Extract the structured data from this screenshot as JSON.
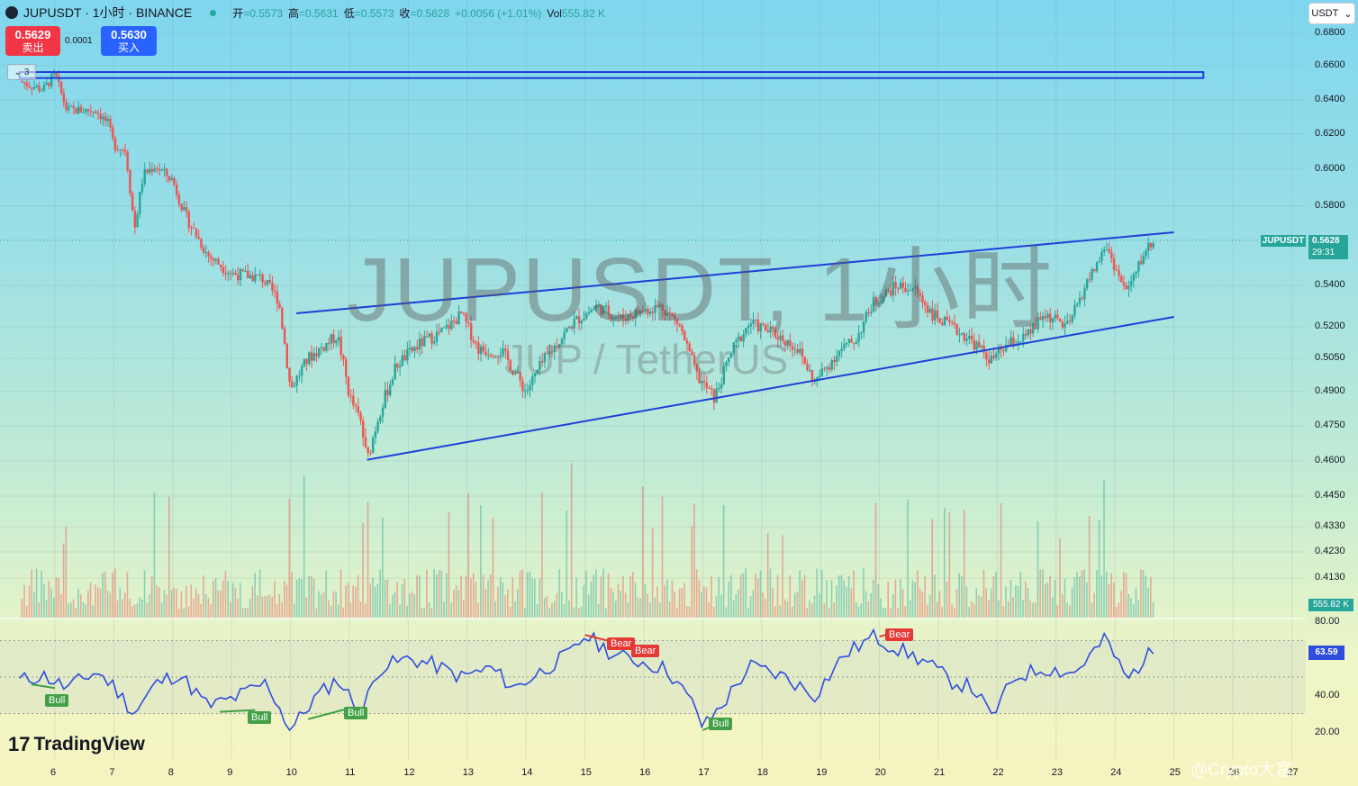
{
  "header": {
    "symbol_title": "JUPUSDT · 1小时 · BINANCE",
    "ohlc": [
      {
        "k": "开",
        "v": "=0.5573"
      },
      {
        "k": "高",
        "v": "=0.5631"
      },
      {
        "k": "低",
        "v": "=0.5573"
      },
      {
        "k": "收",
        "v": "=0.5628"
      },
      {
        "k": "",
        "v": "+0.0056 (+1.01%)"
      },
      {
        "k": "Vol",
        "v": "555.82 K"
      }
    ]
  },
  "trade": {
    "sell_price": "0.5629",
    "sell_label": "卖出",
    "spread": "0.0001",
    "buy_price": "0.5630",
    "buy_label": "买入"
  },
  "collapse_label": "3",
  "currency_select": "USDT",
  "price_axis": {
    "ticks": [
      "0.6800",
      "0.6600",
      "0.6400",
      "0.6200",
      "0.6000",
      "0.5800",
      "0.5400",
      "0.5200",
      "0.5050",
      "0.4900",
      "0.4750",
      "0.4600",
      "0.4450",
      "0.4330",
      "0.4230",
      "0.4130"
    ]
  },
  "last_price": {
    "symbol": "JUPUSDT",
    "price": "0.5628",
    "countdown": "29:31"
  },
  "volume_label": "555.82 K",
  "rsi": {
    "ticks": [
      "80.00",
      "40.00",
      "20.00"
    ],
    "current": "63.59",
    "signals": [
      "Bull",
      "Bull",
      "Bull",
      "Bull",
      "Bear",
      "Bear",
      "Bear"
    ]
  },
  "time_axis": {
    "ticks": [
      "6",
      "7",
      "8",
      "9",
      "10",
      "11",
      "12",
      "13",
      "14",
      "15",
      "16",
      "17",
      "18",
      "19",
      "20",
      "21",
      "22",
      "23",
      "24",
      "25",
      "26",
      "27"
    ]
  },
  "watermark": {
    "main": "JUPUSDT, 1小时",
    "sub": "JUP / TetherUS"
  },
  "branding": "TradingView",
  "corner_text": "@Crypto大富",
  "colors": {
    "up": "#26a69a",
    "down": "#ef5350",
    "line": "#1e3fd8",
    "rsi": "#2f4ee0",
    "bull": "#43a047",
    "bear": "#e53935"
  },
  "chart_data": {
    "type": "candlestick",
    "symbol": "JUPUSDT",
    "interval": "1小时",
    "exchange": "BINANCE",
    "x_labels": [
      "6",
      "7",
      "8",
      "9",
      "10",
      "11",
      "12",
      "13",
      "14",
      "15",
      "16",
      "17",
      "18",
      "19",
      "20",
      "21",
      "22",
      "23",
      "24",
      "25",
      "26",
      "27"
    ],
    "ylim": [
      0.405,
      0.685
    ],
    "close_path": [
      {
        "day": 5.4,
        "price": 0.651
      },
      {
        "day": 5.8,
        "price": 0.646
      },
      {
        "day": 6.0,
        "price": 0.655
      },
      {
        "day": 6.2,
        "price": 0.634
      },
      {
        "day": 6.7,
        "price": 0.634
      },
      {
        "day": 6.9,
        "price": 0.626
      },
      {
        "day": 7.0,
        "price": 0.614
      },
      {
        "day": 7.2,
        "price": 0.611
      },
      {
        "day": 7.35,
        "price": 0.568
      },
      {
        "day": 7.5,
        "price": 0.597
      },
      {
        "day": 7.7,
        "price": 0.602
      },
      {
        "day": 8.0,
        "price": 0.594
      },
      {
        "day": 8.2,
        "price": 0.576
      },
      {
        "day": 8.6,
        "price": 0.555
      },
      {
        "day": 9.0,
        "price": 0.546
      },
      {
        "day": 9.5,
        "price": 0.544
      },
      {
        "day": 9.8,
        "price": 0.533
      },
      {
        "day": 10.0,
        "price": 0.491
      },
      {
        "day": 10.3,
        "price": 0.505
      },
      {
        "day": 10.8,
        "price": 0.516
      },
      {
        "day": 11.0,
        "price": 0.488
      },
      {
        "day": 11.2,
        "price": 0.476
      },
      {
        "day": 11.3,
        "price": 0.46
      },
      {
        "day": 11.5,
        "price": 0.48
      },
      {
        "day": 11.8,
        "price": 0.502
      },
      {
        "day": 12.2,
        "price": 0.512
      },
      {
        "day": 12.6,
        "price": 0.518
      },
      {
        "day": 12.9,
        "price": 0.526
      },
      {
        "day": 13.2,
        "price": 0.509
      },
      {
        "day": 13.6,
        "price": 0.508
      },
      {
        "day": 14.0,
        "price": 0.49
      },
      {
        "day": 14.3,
        "price": 0.504
      },
      {
        "day": 14.8,
        "price": 0.522
      },
      {
        "day": 15.2,
        "price": 0.53
      },
      {
        "day": 15.6,
        "price": 0.524
      },
      {
        "day": 16.0,
        "price": 0.528
      },
      {
        "day": 16.3,
        "price": 0.53
      },
      {
        "day": 16.6,
        "price": 0.521
      },
      {
        "day": 16.9,
        "price": 0.497
      },
      {
        "day": 17.2,
        "price": 0.487
      },
      {
        "day": 17.5,
        "price": 0.509
      },
      {
        "day": 17.8,
        "price": 0.522
      },
      {
        "day": 18.2,
        "price": 0.517
      },
      {
        "day": 18.6,
        "price": 0.51
      },
      {
        "day": 18.9,
        "price": 0.494
      },
      {
        "day": 19.3,
        "price": 0.508
      },
      {
        "day": 19.6,
        "price": 0.514
      },
      {
        "day": 19.9,
        "price": 0.532
      },
      {
        "day": 20.3,
        "price": 0.54
      },
      {
        "day": 20.6,
        "price": 0.538
      },
      {
        "day": 20.9,
        "price": 0.526
      },
      {
        "day": 21.2,
        "price": 0.52
      },
      {
        "day": 21.5,
        "price": 0.515
      },
      {
        "day": 21.9,
        "price": 0.504
      },
      {
        "day": 22.2,
        "price": 0.512
      },
      {
        "day": 22.5,
        "price": 0.515
      },
      {
        "day": 22.8,
        "price": 0.526
      },
      {
        "day": 23.2,
        "price": 0.52
      },
      {
        "day": 23.5,
        "price": 0.54
      },
      {
        "day": 23.85,
        "price": 0.56
      },
      {
        "day": 24.1,
        "price": 0.542
      },
      {
        "day": 24.2,
        "price": 0.537
      },
      {
        "day": 24.35,
        "price": 0.546
      },
      {
        "day": 24.5,
        "price": 0.557
      },
      {
        "day": 24.65,
        "price": 0.5628
      }
    ],
    "trendlines": [
      {
        "from": {
          "day": 10.1,
          "price": 0.5265
        },
        "to": {
          "day": 25.0,
          "price": 0.5668
        }
      },
      {
        "from": {
          "day": 11.3,
          "price": 0.4605
        },
        "to": {
          "day": 25.0,
          "price": 0.5248
        }
      }
    ],
    "rectangle": {
      "day_from": 5.4,
      "day_to": 25.5,
      "price_top": 0.6563,
      "price_bottom": 0.6528
    },
    "rsi_path": [
      {
        "day": 5.4,
        "v": 48
      },
      {
        "day": 5.8,
        "v": 51
      },
      {
        "day": 6.2,
        "v": 44
      },
      {
        "day": 6.7,
        "v": 53
      },
      {
        "day": 7.0,
        "v": 45
      },
      {
        "day": 7.35,
        "v": 30
      },
      {
        "day": 7.7,
        "v": 46
      },
      {
        "day": 8.1,
        "v": 52
      },
      {
        "day": 8.6,
        "v": 34
      },
      {
        "day": 9.0,
        "v": 38
      },
      {
        "day": 9.6,
        "v": 47
      },
      {
        "day": 10.0,
        "v": 21
      },
      {
        "day": 10.4,
        "v": 38
      },
      {
        "day": 10.8,
        "v": 49
      },
      {
        "day": 11.2,
        "v": 30
      },
      {
        "day": 11.5,
        "v": 55
      },
      {
        "day": 12.0,
        "v": 60
      },
      {
        "day": 12.4,
        "v": 57
      },
      {
        "day": 12.9,
        "v": 50
      },
      {
        "day": 13.4,
        "v": 55
      },
      {
        "day": 13.8,
        "v": 44
      },
      {
        "day": 14.3,
        "v": 54
      },
      {
        "day": 14.8,
        "v": 64
      },
      {
        "day": 15.0,
        "v": 73
      },
      {
        "day": 15.5,
        "v": 62
      },
      {
        "day": 16.0,
        "v": 58
      },
      {
        "day": 16.4,
        "v": 54
      },
      {
        "day": 16.9,
        "v": 32
      },
      {
        "day": 17.0,
        "v": 22
      },
      {
        "day": 17.4,
        "v": 38
      },
      {
        "day": 17.8,
        "v": 56
      },
      {
        "day": 18.4,
        "v": 50
      },
      {
        "day": 18.9,
        "v": 40
      },
      {
        "day": 19.4,
        "v": 62
      },
      {
        "day": 19.9,
        "v": 72
      },
      {
        "day": 20.4,
        "v": 64
      },
      {
        "day": 20.8,
        "v": 58
      },
      {
        "day": 21.2,
        "v": 48
      },
      {
        "day": 21.6,
        "v": 44
      },
      {
        "day": 21.9,
        "v": 28
      },
      {
        "day": 22.3,
        "v": 50
      },
      {
        "day": 22.8,
        "v": 55
      },
      {
        "day": 23.3,
        "v": 52
      },
      {
        "day": 23.7,
        "v": 66
      },
      {
        "day": 23.85,
        "v": 71
      },
      {
        "day": 24.2,
        "v": 48
      },
      {
        "day": 24.5,
        "v": 60
      },
      {
        "day": 24.65,
        "v": 63.59
      }
    ],
    "rsi_levels": [
      70,
      50,
      30
    ]
  }
}
